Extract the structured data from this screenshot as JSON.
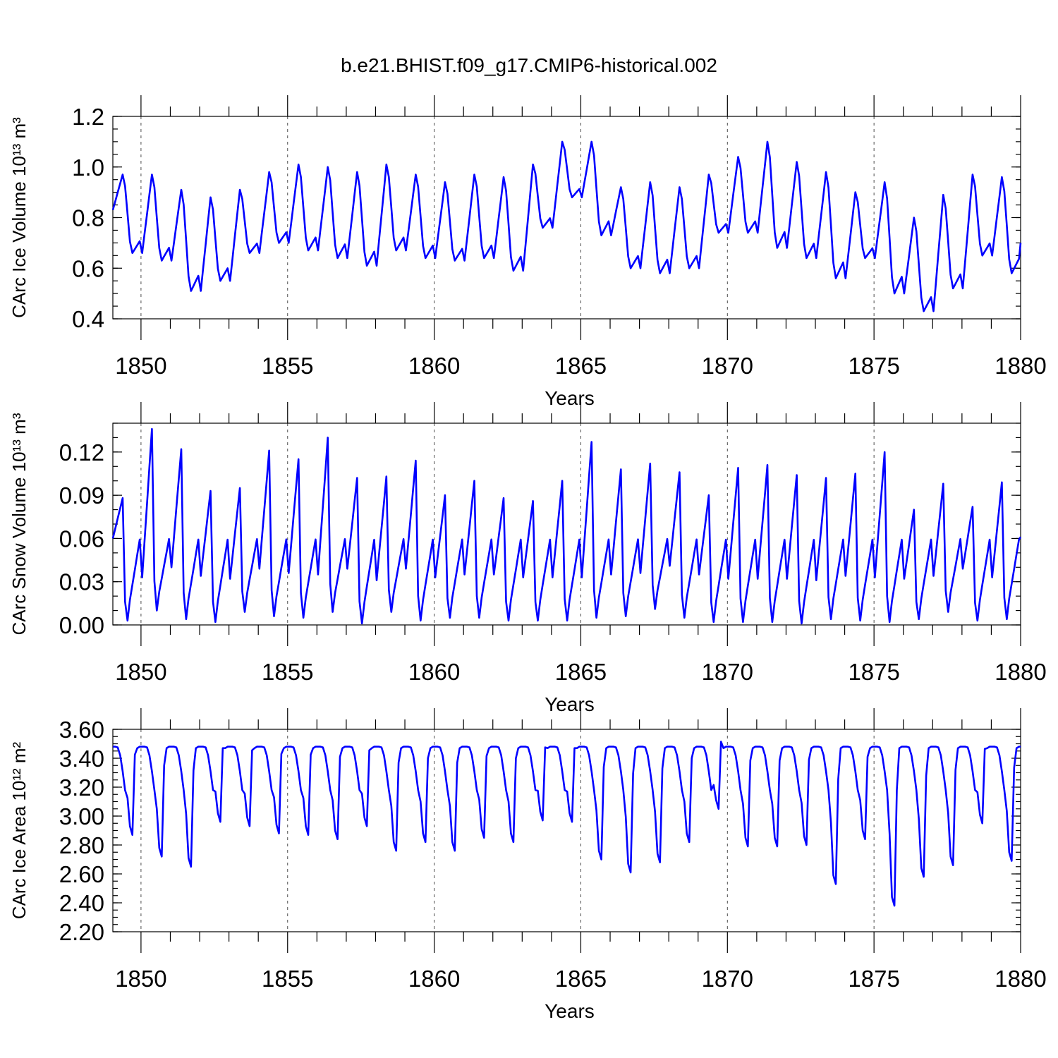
{
  "title": "b.e21.BHIST.f09_g17.CMIP6-historical.002",
  "colors": {
    "series": "#0000ff",
    "axis": "#000000"
  },
  "chart_data": [
    {
      "id": "ice-volume",
      "type": "line",
      "ylabel": "CArc Ice Volume 10¹³ m³",
      "xlabel": "Years",
      "xlim": [
        1849.04,
        1880.0
      ],
      "ylim": [
        0.4,
        1.2
      ],
      "yticks": [
        0.4,
        0.6,
        0.8,
        1.0,
        1.2
      ],
      "ytick_labels": [
        "0.4",
        "0.6",
        "0.8",
        "1.0",
        "1.2"
      ],
      "yminor": 0.05,
      "xticks": [
        1850,
        1855,
        1860,
        1865,
        1870,
        1875,
        1880
      ],
      "xtick_labels": [
        "1850",
        "1855",
        "1860",
        "1865",
        "1870",
        "1875",
        "1880"
      ],
      "series": [
        {
          "name": "CArc Ice Volume",
          "start_year": 1849.0,
          "step": 0.0833,
          "peak_month": 4,
          "min_month": 8,
          "annual_max": [
            0.97,
            0.97,
            0.91,
            0.88,
            0.91,
            0.98,
            1.01,
            1.0,
            0.98,
            1.01,
            0.97,
            0.94,
            0.97,
            0.96,
            1.01,
            1.1,
            1.1,
            0.92,
            0.94,
            0.92,
            0.97,
            1.04,
            1.1,
            1.02,
            0.98,
            0.9,
            0.94,
            0.8,
            0.89,
            0.97,
            0.96
          ],
          "annual_min": [
            0.66,
            0.63,
            0.51,
            0.55,
            0.66,
            0.7,
            0.67,
            0.64,
            0.61,
            0.67,
            0.64,
            0.63,
            0.64,
            0.59,
            0.76,
            0.88,
            0.73,
            0.6,
            0.58,
            0.6,
            0.74,
            0.74,
            0.68,
            0.64,
            0.56,
            0.64,
            0.5,
            0.43,
            0.52,
            0.65,
            0.58
          ],
          "end_value": 0.7
        }
      ]
    },
    {
      "id": "snow-volume",
      "type": "line",
      "ylabel": "CArc Snow Volume 10¹³ m³",
      "xlabel": "Years",
      "xlim": [
        1849.04,
        1880.0
      ],
      "ylim": [
        0.0,
        0.14
      ],
      "yticks": [
        0.0,
        0.03,
        0.06,
        0.09,
        0.12
      ],
      "ytick_labels": [
        "0.00",
        "0.03",
        "0.06",
        "0.09",
        "0.12"
      ],
      "yminor": 0.01,
      "xticks": [
        1850,
        1855,
        1860,
        1865,
        1870,
        1875,
        1880
      ],
      "xtick_labels": [
        "1850",
        "1855",
        "1860",
        "1865",
        "1870",
        "1875",
        "1880"
      ],
      "series": [
        {
          "name": "CArc Snow Volume",
          "start_year": 1849.0,
          "step": 0.0833,
          "peak_month": 4,
          "min_month": 6,
          "annual_max": [
            0.088,
            0.136,
            0.122,
            0.093,
            0.095,
            0.121,
            0.115,
            0.13,
            0.102,
            0.103,
            0.114,
            0.09,
            0.1,
            0.088,
            0.086,
            0.1,
            0.127,
            0.108,
            0.112,
            0.106,
            0.09,
            0.109,
            0.111,
            0.104,
            0.102,
            0.105,
            0.12,
            0.08,
            0.098,
            0.082,
            0.099
          ],
          "annual_min": [
            0.003,
            0.01,
            0.004,
            0.002,
            0.009,
            0.006,
            0.005,
            0.009,
            0.001,
            0.009,
            0.003,
            0.005,
            0.005,
            0.003,
            0.003,
            0.003,
            0.005,
            0.006,
            0.011,
            0.005,
            0.002,
            0.002,
            0.002,
            0.001,
            0.004,
            0.003,
            0.002,
            0.004,
            0.009,
            0.003,
            0.004
          ],
          "start_value": 0.06,
          "end_value": 0.061
        }
      ]
    },
    {
      "id": "ice-area",
      "type": "line",
      "ylabel": "CArc Ice Area 10¹² m²",
      "xlabel": "Years",
      "xlim": [
        1849.04,
        1880.0
      ],
      "ylim": [
        2.2,
        3.6
      ],
      "yticks": [
        2.2,
        2.4,
        2.6,
        2.8,
        3.0,
        3.2,
        3.4,
        3.6
      ],
      "ytick_labels": [
        "2.20",
        "2.40",
        "2.60",
        "2.80",
        "3.00",
        "3.20",
        "3.40",
        "3.60"
      ],
      "yminor": 0.05,
      "xticks": [
        1850,
        1855,
        1860,
        1865,
        1870,
        1875,
        1880
      ],
      "xtick_labels": [
        "1850",
        "1855",
        "1860",
        "1865",
        "1870",
        "1875",
        "1880"
      ],
      "series": [
        {
          "name": "CArc Ice Area",
          "start_year": 1849.0,
          "step": 0.0833,
          "plateau": 3.48,
          "min_month": 8,
          "annual_min": [
            2.87,
            2.72,
            2.65,
            2.96,
            2.93,
            2.88,
            2.87,
            2.84,
            2.93,
            2.76,
            2.82,
            2.76,
            2.85,
            2.82,
            2.97,
            2.96,
            2.7,
            2.61,
            2.68,
            2.82,
            3.05,
            2.79,
            2.79,
            2.8,
            2.53,
            2.84,
            2.38,
            2.58,
            2.66,
            2.95,
            2.69
          ],
          "end_value": 3.48
        }
      ]
    }
  ]
}
